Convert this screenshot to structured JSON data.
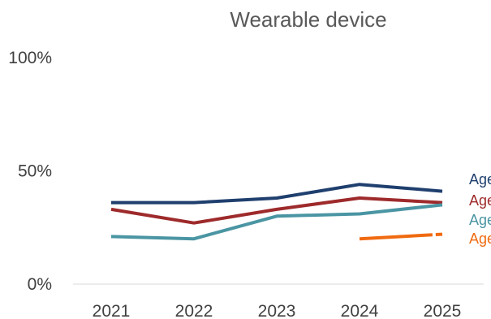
{
  "chart_data": {
    "type": "line",
    "title": "Wearable device",
    "xlabel": "",
    "ylabel": "",
    "categories": [
      "2021",
      "2022",
      "2023",
      "2024",
      "2025"
    ],
    "ylim": [
      0,
      100
    ],
    "yticks": [
      "0%",
      "50%",
      "100%"
    ],
    "grid": false,
    "legend": "direct labels at right end of lines",
    "series": [
      {
        "name": "Age",
        "color": "#1f3f6e",
        "dashed": false,
        "values": [
          36,
          36,
          38,
          44,
          41
        ]
      },
      {
        "name": "Age",
        "color": "#9e2a2b",
        "dashed": false,
        "values": [
          33,
          27,
          33,
          38,
          36
        ]
      },
      {
        "name": "Age",
        "color": "#4a95a3",
        "dashed": false,
        "values": [
          21,
          20,
          30,
          31,
          35
        ]
      },
      {
        "name": "Age",
        "color": "#f06a10",
        "dashed": true,
        "values": [
          null,
          null,
          null,
          20,
          22
        ]
      }
    ]
  }
}
